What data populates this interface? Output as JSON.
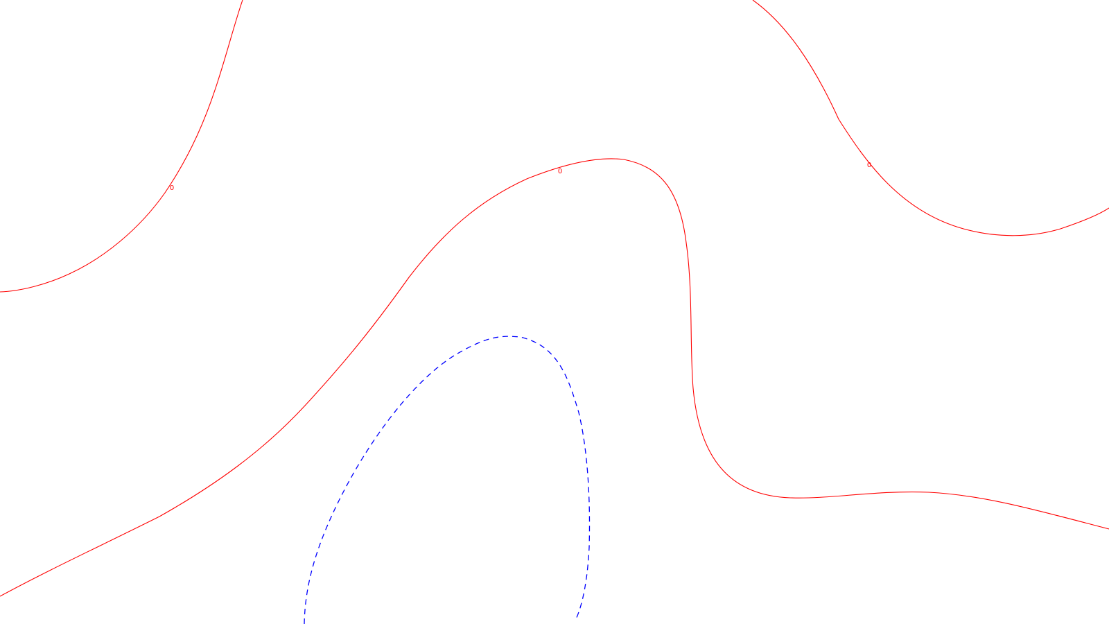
{
  "chart_data": {
    "type": "contour",
    "title": "",
    "xlabel": "",
    "ylabel": "",
    "grid": false,
    "axes_visible": false,
    "legend": "none",
    "levels": [
      {
        "level_label": "0",
        "value": 0,
        "color": "#ff0000",
        "line_style": "solid",
        "label_count": 3
      },
      {
        "level_label": "",
        "value": null,
        "color": "#0000ff",
        "line_style": "dashed",
        "label_count": 0
      }
    ]
  }
}
